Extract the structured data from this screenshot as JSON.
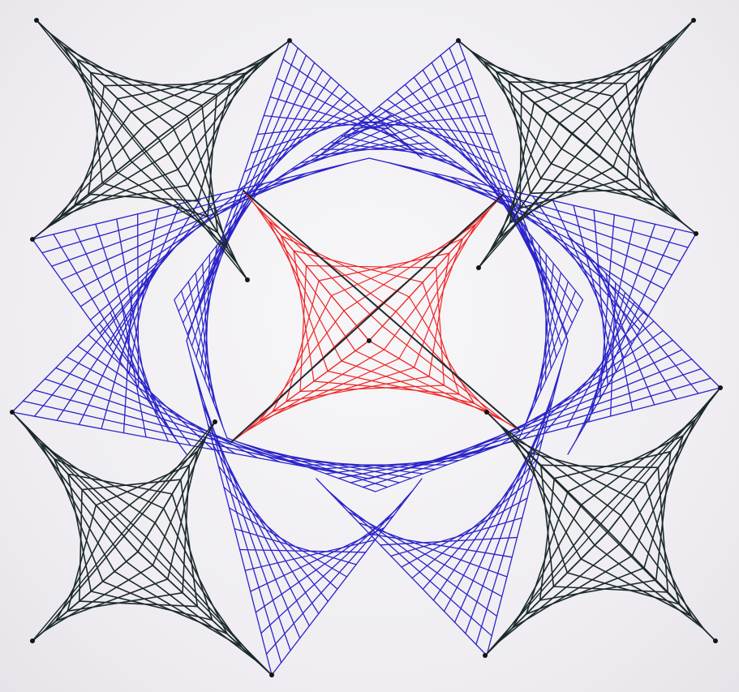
{
  "artwork": {
    "subject": "string-art",
    "colors": {
      "black_thread": "#1c2a2e",
      "blue_thread": "#2a23c9",
      "red_thread": "#ee2424",
      "paper": "#f3f1f4",
      "pin": "#141414"
    }
  }
}
